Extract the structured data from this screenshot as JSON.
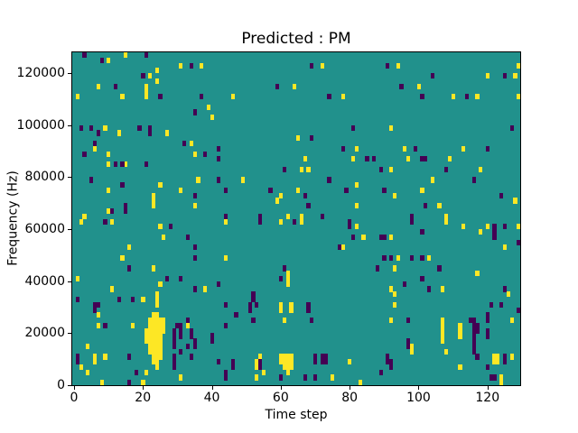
{
  "chart_data": {
    "type": "heatmap",
    "title": "Predicted : PM",
    "xlabel": "Time step",
    "ylabel": "Frequency (Hz)",
    "x_ticks": [
      0,
      20,
      40,
      60,
      80,
      100,
      120
    ],
    "y_ticks": [
      0,
      20000,
      40000,
      60000,
      80000,
      100000,
      120000
    ],
    "xlim": [
      -0.5,
      129.5
    ],
    "ylim": [
      0,
      128000
    ],
    "n_time_steps": 130,
    "n_freq_bins": 64,
    "freq_bin_hz": 2000,
    "grid": false,
    "legend": "none",
    "colors": {
      "background_mid": "#21918c",
      "high": "#fde725",
      "low": "#440154",
      "spine": "#000000",
      "figure_bg": "#ffffff"
    },
    "cell_row_origin": "top",
    "yellow_cells": [
      [
        15,
        0
      ],
      [
        10,
        1
      ],
      [
        31,
        2
      ],
      [
        37,
        2
      ],
      [
        24,
        3
      ],
      [
        22,
        4
      ],
      [
        24,
        5
      ],
      [
        7,
        6
      ],
      [
        21,
        6
      ],
      [
        21,
        7
      ],
      [
        1,
        8
      ],
      [
        14,
        8
      ],
      [
        21,
        8
      ],
      [
        39,
        10
      ],
      [
        40,
        12
      ],
      [
        9,
        14
      ],
      [
        13,
        15
      ],
      [
        27,
        15
      ],
      [
        34,
        17
      ],
      [
        6,
        18
      ],
      [
        10,
        19
      ],
      [
        35,
        19
      ],
      [
        10,
        21
      ],
      [
        15,
        21
      ],
      [
        36,
        24
      ],
      [
        25,
        25
      ],
      [
        10,
        26
      ],
      [
        31,
        26
      ],
      [
        23,
        27
      ],
      [
        23,
        28
      ],
      [
        23,
        29
      ],
      [
        35,
        29
      ],
      [
        10,
        30
      ],
      [
        3,
        31
      ],
      [
        72,
        2
      ],
      [
        64,
        6
      ],
      [
        46,
        8
      ],
      [
        78,
        8
      ],
      [
        65,
        16
      ],
      [
        82,
        18
      ],
      [
        67,
        20
      ],
      [
        81,
        20
      ],
      [
        66,
        22
      ],
      [
        68,
        22
      ],
      [
        49,
        24
      ],
      [
        82,
        25
      ],
      [
        65,
        26
      ],
      [
        60,
        27
      ],
      [
        59,
        28
      ],
      [
        82,
        29
      ],
      [
        62,
        31
      ],
      [
        66,
        31
      ],
      [
        94,
        2
      ],
      [
        129,
        2
      ],
      [
        120,
        4
      ],
      [
        128,
        4
      ],
      [
        100,
        6
      ],
      [
        110,
        8
      ],
      [
        117,
        8
      ],
      [
        129,
        8
      ],
      [
        92,
        14
      ],
      [
        96,
        18
      ],
      [
        113,
        18
      ],
      [
        97,
        20
      ],
      [
        109,
        20
      ],
      [
        92,
        22
      ],
      [
        118,
        22
      ],
      [
        104,
        24
      ],
      [
        101,
        26
      ],
      [
        93,
        27
      ],
      [
        128,
        28
      ],
      [
        106,
        29
      ],
      [
        108,
        31
      ],
      [
        2,
        32
      ],
      [
        11,
        32
      ],
      [
        25,
        33
      ],
      [
        26,
        35
      ],
      [
        16,
        37
      ],
      [
        14,
        39
      ],
      [
        23,
        41
      ],
      [
        1,
        43
      ],
      [
        25,
        44
      ],
      [
        11,
        45
      ],
      [
        38,
        45
      ],
      [
        24,
        46
      ],
      [
        20,
        47
      ],
      [
        24,
        47
      ],
      [
        24,
        48
      ],
      [
        7,
        50
      ],
      [
        7,
        52
      ],
      [
        17,
        52
      ],
      [
        33,
        52
      ],
      [
        4,
        56
      ],
      [
        6,
        58
      ],
      [
        9,
        58
      ],
      [
        6,
        59
      ],
      [
        2,
        60
      ],
      [
        4,
        61
      ],
      [
        21,
        61
      ],
      [
        31,
        62
      ],
      [
        8,
        63
      ],
      [
        20,
        63
      ],
      [
        23,
        50
      ],
      [
        24,
        50
      ],
      [
        22,
        51
      ],
      [
        23,
        51
      ],
      [
        24,
        51
      ],
      [
        25,
        51
      ],
      [
        26,
        51
      ],
      [
        22,
        52
      ],
      [
        23,
        52
      ],
      [
        24,
        52
      ],
      [
        25,
        52
      ],
      [
        26,
        52
      ],
      [
        21,
        53
      ],
      [
        22,
        53
      ],
      [
        23,
        53
      ],
      [
        24,
        53
      ],
      [
        25,
        53
      ],
      [
        26,
        53
      ],
      [
        21,
        54
      ],
      [
        22,
        54
      ],
      [
        23,
        54
      ],
      [
        24,
        54
      ],
      [
        25,
        54
      ],
      [
        21,
        55
      ],
      [
        22,
        55
      ],
      [
        23,
        55
      ],
      [
        24,
        55
      ],
      [
        25,
        55
      ],
      [
        22,
        56
      ],
      [
        23,
        56
      ],
      [
        24,
        56
      ],
      [
        25,
        56
      ],
      [
        22,
        57
      ],
      [
        23,
        57
      ],
      [
        24,
        57
      ],
      [
        25,
        57
      ],
      [
        23,
        58
      ],
      [
        24,
        58
      ],
      [
        25,
        58
      ],
      [
        23,
        59
      ],
      [
        24,
        59
      ],
      [
        24,
        60
      ],
      [
        44,
        32
      ],
      [
        60,
        32
      ],
      [
        66,
        32
      ],
      [
        82,
        33
      ],
      [
        84,
        35
      ],
      [
        78,
        37
      ],
      [
        44,
        39
      ],
      [
        62,
        42
      ],
      [
        62,
        43
      ],
      [
        62,
        44
      ],
      [
        60,
        48
      ],
      [
        63,
        48
      ],
      [
        60,
        49
      ],
      [
        63,
        49
      ],
      [
        61,
        51
      ],
      [
        54,
        58
      ],
      [
        53,
        59
      ],
      [
        80,
        59
      ],
      [
        53,
        60
      ],
      [
        55,
        61
      ],
      [
        53,
        62
      ],
      [
        75,
        62
      ],
      [
        83,
        63
      ],
      [
        60,
        58
      ],
      [
        61,
        58
      ],
      [
        62,
        58
      ],
      [
        63,
        58
      ],
      [
        60,
        59
      ],
      [
        61,
        59
      ],
      [
        62,
        59
      ],
      [
        63,
        59
      ],
      [
        61,
        60
      ],
      [
        62,
        60
      ],
      [
        63,
        60
      ],
      [
        62,
        61
      ],
      [
        108,
        32
      ],
      [
        113,
        33
      ],
      [
        120,
        33
      ],
      [
        129,
        33
      ],
      [
        118,
        34
      ],
      [
        92,
        35
      ],
      [
        125,
        37
      ],
      [
        94,
        39
      ],
      [
        103,
        39
      ],
      [
        93,
        41
      ],
      [
        117,
        42
      ],
      [
        92,
        45
      ],
      [
        107,
        45
      ],
      [
        93,
        46
      ],
      [
        126,
        46
      ],
      [
        93,
        48
      ],
      [
        92,
        51
      ],
      [
        107,
        51
      ],
      [
        127,
        51
      ],
      [
        107,
        52
      ],
      [
        112,
        52
      ],
      [
        107,
        53
      ],
      [
        112,
        53
      ],
      [
        107,
        54
      ],
      [
        112,
        54
      ],
      [
        107,
        55
      ],
      [
        98,
        56
      ],
      [
        98,
        57
      ],
      [
        108,
        57
      ],
      [
        122,
        58
      ],
      [
        123,
        58
      ],
      [
        127,
        58
      ],
      [
        122,
        59
      ],
      [
        123,
        59
      ],
      [
        112,
        60
      ],
      [
        124,
        62
      ],
      [
        124,
        63
      ]
    ],
    "purple_cells": [
      [
        3,
        0
      ],
      [
        21,
        0
      ],
      [
        8,
        1
      ],
      [
        34,
        2
      ],
      [
        20,
        4
      ],
      [
        12,
        6
      ],
      [
        25,
        8
      ],
      [
        37,
        8
      ],
      [
        35,
        11
      ],
      [
        2,
        14
      ],
      [
        5,
        14
      ],
      [
        19,
        14
      ],
      [
        22,
        14
      ],
      [
        7,
        15
      ],
      [
        22,
        15
      ],
      [
        6,
        17
      ],
      [
        32,
        17
      ],
      [
        42,
        18
      ],
      [
        3,
        19
      ],
      [
        38,
        19
      ],
      [
        42,
        20
      ],
      [
        12,
        21
      ],
      [
        14,
        21
      ],
      [
        21,
        21
      ],
      [
        5,
        24
      ],
      [
        42,
        24
      ],
      [
        14,
        25
      ],
      [
        35,
        27
      ],
      [
        15,
        29
      ],
      [
        15,
        30
      ],
      [
        11,
        30
      ],
      [
        69,
        2
      ],
      [
        59,
        6
      ],
      [
        74,
        8
      ],
      [
        81,
        14
      ],
      [
        69,
        16
      ],
      [
        78,
        18
      ],
      [
        85,
        20
      ],
      [
        61,
        22
      ],
      [
        74,
        24
      ],
      [
        44,
        26
      ],
      [
        57,
        26
      ],
      [
        79,
        26
      ],
      [
        67,
        27
      ],
      [
        68,
        29
      ],
      [
        44,
        31
      ],
      [
        54,
        31
      ],
      [
        72,
        31
      ],
      [
        91,
        2
      ],
      [
        104,
        4
      ],
      [
        125,
        4
      ],
      [
        95,
        6
      ],
      [
        101,
        8
      ],
      [
        114,
        8
      ],
      [
        127,
        14
      ],
      [
        99,
        18
      ],
      [
        120,
        18
      ],
      [
        87,
        20
      ],
      [
        101,
        20
      ],
      [
        102,
        20
      ],
      [
        89,
        22
      ],
      [
        108,
        22
      ],
      [
        116,
        24
      ],
      [
        90,
        26
      ],
      [
        124,
        27
      ],
      [
        102,
        29
      ],
      [
        98,
        31
      ],
      [
        9,
        32
      ],
      [
        28,
        33
      ],
      [
        33,
        35
      ],
      [
        35,
        37
      ],
      [
        35,
        39
      ],
      [
        16,
        41
      ],
      [
        27,
        43
      ],
      [
        31,
        43
      ],
      [
        35,
        45
      ],
      [
        42,
        44
      ],
      [
        1,
        47
      ],
      [
        13,
        47
      ],
      [
        17,
        47
      ],
      [
        6,
        48
      ],
      [
        7,
        48
      ],
      [
        6,
        49
      ],
      [
        33,
        51
      ],
      [
        9,
        52
      ],
      [
        30,
        52
      ],
      [
        31,
        52
      ],
      [
        29,
        53
      ],
      [
        31,
        53
      ],
      [
        34,
        53
      ],
      [
        29,
        54
      ],
      [
        31,
        54
      ],
      [
        34,
        54
      ],
      [
        40,
        54
      ],
      [
        29,
        55
      ],
      [
        35,
        55
      ],
      [
        40,
        55
      ],
      [
        29,
        56
      ],
      [
        33,
        56
      ],
      [
        35,
        56
      ],
      [
        31,
        57
      ],
      [
        1,
        58
      ],
      [
        16,
        58
      ],
      [
        29,
        58
      ],
      [
        34,
        58
      ],
      [
        1,
        59
      ],
      [
        29,
        59
      ],
      [
        42,
        59
      ],
      [
        29,
        60
      ],
      [
        18,
        61
      ],
      [
        16,
        63
      ],
      [
        54,
        32
      ],
      [
        64,
        32
      ],
      [
        80,
        32
      ],
      [
        80,
        33
      ],
      [
        81,
        35
      ],
      [
        77,
        37
      ],
      [
        61,
        41
      ],
      [
        60,
        43
      ],
      [
        52,
        46
      ],
      [
        52,
        47
      ],
      [
        44,
        48
      ],
      [
        51,
        48
      ],
      [
        53,
        48
      ],
      [
        68,
        48
      ],
      [
        51,
        49
      ],
      [
        68,
        49
      ],
      [
        47,
        50
      ],
      [
        52,
        51
      ],
      [
        69,
        51
      ],
      [
        44,
        52
      ],
      [
        70,
        58
      ],
      [
        72,
        58
      ],
      [
        73,
        58
      ],
      [
        46,
        59
      ],
      [
        54,
        59
      ],
      [
        70,
        59
      ],
      [
        72,
        59
      ],
      [
        73,
        59
      ],
      [
        46,
        60
      ],
      [
        54,
        60
      ],
      [
        44,
        61
      ],
      [
        44,
        62
      ],
      [
        60,
        62
      ],
      [
        67,
        62
      ],
      [
        70,
        62
      ],
      [
        98,
        32
      ],
      [
        101,
        34
      ],
      [
        122,
        33
      ],
      [
        125,
        33
      ],
      [
        122,
        34
      ],
      [
        89,
        35
      ],
      [
        90,
        35
      ],
      [
        122,
        35
      ],
      [
        129,
        36
      ],
      [
        90,
        39
      ],
      [
        92,
        39
      ],
      [
        98,
        39
      ],
      [
        101,
        39
      ],
      [
        88,
        41
      ],
      [
        106,
        41
      ],
      [
        101,
        43
      ],
      [
        96,
        44
      ],
      [
        103,
        45
      ],
      [
        125,
        45
      ],
      [
        121,
        48
      ],
      [
        124,
        48
      ],
      [
        129,
        49
      ],
      [
        120,
        50
      ],
      [
        97,
        51
      ],
      [
        115,
        51
      ],
      [
        116,
        51
      ],
      [
        120,
        51
      ],
      [
        116,
        52
      ],
      [
        117,
        52
      ],
      [
        116,
        53
      ],
      [
        117,
        53
      ],
      [
        120,
        53
      ],
      [
        116,
        54
      ],
      [
        120,
        54
      ],
      [
        97,
        55
      ],
      [
        116,
        55
      ],
      [
        97,
        56
      ],
      [
        116,
        56
      ],
      [
        116,
        57
      ],
      [
        91,
        58
      ],
      [
        117,
        58
      ],
      [
        125,
        58
      ],
      [
        91,
        59
      ],
      [
        92,
        59
      ],
      [
        125,
        59
      ],
      [
        92,
        60
      ],
      [
        120,
        60
      ],
      [
        89,
        61
      ],
      [
        121,
        62
      ],
      [
        122,
        62
      ]
    ]
  }
}
